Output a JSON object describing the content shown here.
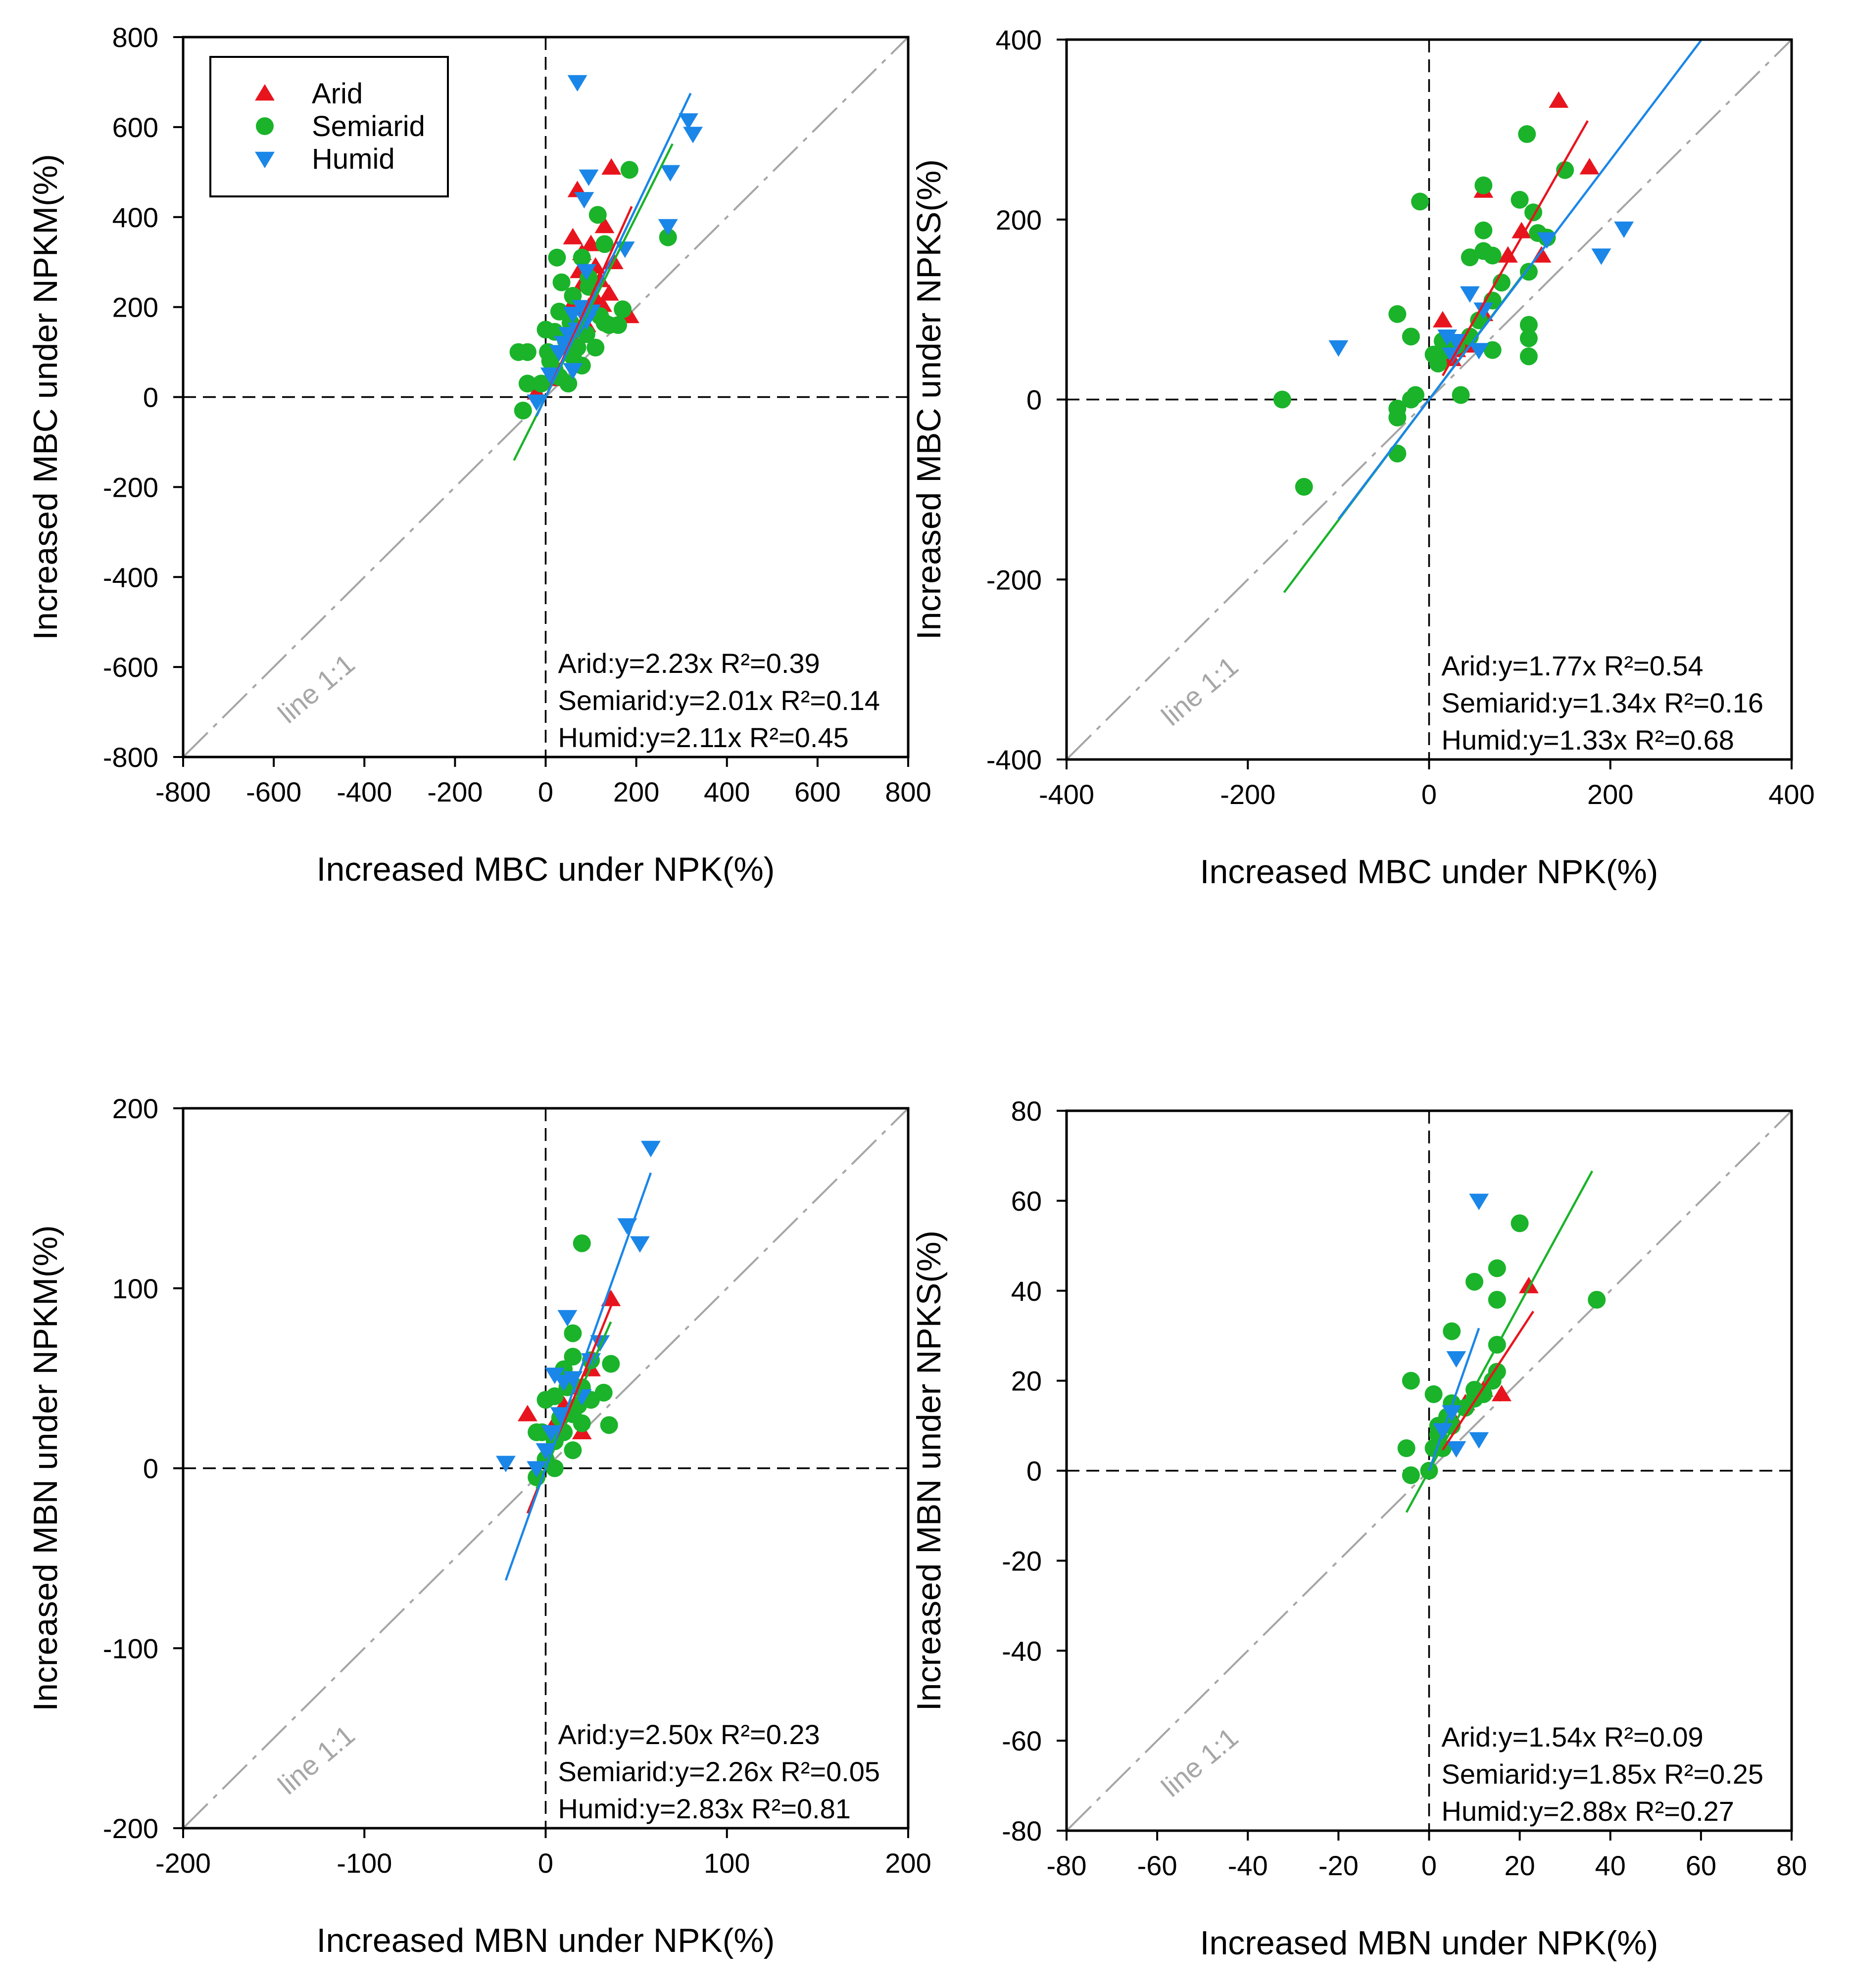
{
  "colors": {
    "arid": "#e8141d",
    "semiarid": "#1ab32a",
    "humid": "#1a86e8",
    "identity": "#a6a6a6",
    "axis": "#000000"
  },
  "legend": [
    "Arid",
    "Semiarid",
    "Humid"
  ],
  "chart_data": [
    {
      "type": "scatter",
      "xlabel": "Increased MBC under NPK(%)",
      "ylabel": "Increased MBC under NPKM(%)",
      "xlim": [
        -800,
        800
      ],
      "ylim": [
        -800,
        800
      ],
      "xticks": [
        "-800",
        "-600",
        "-400",
        "-200",
        "0",
        "200",
        "400",
        "600",
        "800"
      ],
      "yticks": [
        "-800",
        "-600",
        "-400",
        "-200",
        "0",
        "200",
        "400",
        "600",
        "800"
      ],
      "identity_label": "line 1:1",
      "show_legend": true,
      "equations": [
        "Arid:y=2.23x R²=0.39",
        "Semiarid:y=2.01x R²=0.14",
        "Humid:y=2.11x R²=0.45"
      ],
      "series": [
        {
          "name": "Arid",
          "slope": 2.23,
          "fit_x": [
            0,
            190
          ],
          "points": [
            [
              145,
              510
            ],
            [
              70,
              460
            ],
            [
              100,
              340
            ],
            [
              60,
              355
            ],
            [
              80,
              320
            ],
            [
              130,
              380
            ],
            [
              150,
              300
            ],
            [
              110,
              290
            ],
            [
              75,
              280
            ],
            [
              120,
              260
            ],
            [
              185,
              180
            ],
            [
              95,
              200
            ],
            [
              140,
              230
            ],
            [
              110,
              220
            ],
            [
              90,
              160
            ],
            [
              60,
              130
            ],
            [
              40,
              110
            ],
            [
              20,
              70
            ],
            [
              10,
              40
            ],
            [
              -20,
              10
            ],
            [
              80,
              250
            ],
            [
              55,
              200
            ],
            [
              125,
              205
            ]
          ]
        },
        {
          "name": "Semiarid",
          "slope": 2.01,
          "fit_x": [
            -70,
            280
          ],
          "points": [
            [
              185,
              505
            ],
            [
              115,
              405
            ],
            [
              25,
              310
            ],
            [
              80,
              310
            ],
            [
              130,
              340
            ],
            [
              270,
              355
            ],
            [
              95,
              265
            ],
            [
              35,
              255
            ],
            [
              60,
              225
            ],
            [
              95,
              245
            ],
            [
              170,
              195
            ],
            [
              120,
              180
            ],
            [
              30,
              190
            ],
            [
              55,
              165
            ],
            [
              90,
              140
            ],
            [
              130,
              165
            ],
            [
              45,
              125
            ],
            [
              20,
              145
            ],
            [
              70,
              110
            ],
            [
              110,
              110
            ],
            [
              -60,
              100
            ],
            [
              -40,
              100
            ],
            [
              0,
              150
            ],
            [
              -40,
              30
            ],
            [
              -10,
              30
            ],
            [
              30,
              45
            ],
            [
              50,
              30
            ],
            [
              -50,
              -30
            ],
            [
              10,
              80
            ],
            [
              20,
              60
            ],
            [
              60,
              90
            ],
            [
              80,
              70
            ],
            [
              140,
              160
            ],
            [
              160,
              160
            ],
            [
              5,
              100
            ]
          ]
        },
        {
          "name": "Humid",
          "slope": 2.11,
          "fit_x": [
            -20,
            320
          ],
          "points": [
            [
              70,
              700
            ],
            [
              95,
              490
            ],
            [
              315,
              615
            ],
            [
              325,
              585
            ],
            [
              85,
              440
            ],
            [
              275,
              500
            ],
            [
              270,
              380
            ],
            [
              175,
              330
            ],
            [
              90,
              280
            ],
            [
              80,
              200
            ],
            [
              60,
              185
            ],
            [
              100,
              190
            ],
            [
              70,
              150
            ],
            [
              40,
              120
            ],
            [
              30,
              100
            ],
            [
              60,
              60
            ],
            [
              10,
              50
            ],
            [
              -20,
              -10
            ],
            [
              50,
              140
            ],
            [
              90,
              170
            ]
          ]
        }
      ]
    },
    {
      "type": "scatter",
      "xlabel": "Increased MBC under NPK(%)",
      "ylabel": "Increased MBC under NPKS(%)",
      "xlim": [
        -400,
        400
      ],
      "ylim": [
        -400,
        400
      ],
      "xticks": [
        "-400",
        "-200",
        "0",
        "200",
        "400"
      ],
      "yticks": [
        "-400",
        "-200",
        "0",
        "200",
        "400"
      ],
      "identity_label": "line 1:1",
      "show_legend": false,
      "equations": [
        "Arid:y=1.77x R²=0.54",
        "Semiarid:y=1.34x R²=0.16",
        "Humid:y=1.33x R²=0.68"
      ],
      "series": [
        {
          "name": "Arid",
          "slope": 1.77,
          "fit_x": [
            15,
            175
          ],
          "points": [
            [
              143,
              332
            ],
            [
              177,
              258
            ],
            [
              60,
              232
            ],
            [
              102,
              187
            ],
            [
              87,
              160
            ],
            [
              124,
              160
            ],
            [
              15,
              88
            ],
            [
              60,
              95
            ],
            [
              40,
              60
            ],
            [
              25,
              45
            ],
            [
              30,
              55
            ]
          ]
        },
        {
          "name": "Semiarid",
          "slope": 1.34,
          "fit_x": [
            -160,
            110
          ],
          "points": [
            [
              -162,
              0
            ],
            [
              -138,
              -97
            ],
            [
              -10,
              220
            ],
            [
              108,
              295
            ],
            [
              150,
              255
            ],
            [
              60,
              238
            ],
            [
              100,
              222
            ],
            [
              45,
              158
            ],
            [
              115,
              208
            ],
            [
              60,
              188
            ],
            [
              120,
              185
            ],
            [
              60,
              165
            ],
            [
              70,
              160
            ],
            [
              110,
              142
            ],
            [
              80,
              130
            ],
            [
              70,
              110
            ],
            [
              -35,
              95
            ],
            [
              110,
              83
            ],
            [
              -20,
              70
            ],
            [
              110,
              68
            ],
            [
              110,
              48
            ],
            [
              70,
              55
            ],
            [
              15,
              65
            ],
            [
              20,
              55
            ],
            [
              30,
              60
            ],
            [
              10,
              40
            ],
            [
              5,
              50
            ],
            [
              45,
              70
            ],
            [
              35,
              5
            ],
            [
              -15,
              5
            ],
            [
              -35,
              -10
            ],
            [
              -35,
              -20
            ],
            [
              -35,
              -60
            ],
            [
              -20,
              0
            ],
            [
              55,
              88
            ],
            [
              130,
              180
            ]
          ]
        },
        {
          "name": "Humid",
          "slope": 1.33,
          "fit_x": [
            -100,
            300
          ],
          "points": [
            [
              -100,
              58
            ],
            [
              215,
              190
            ],
            [
              190,
              160
            ],
            [
              130,
              178
            ],
            [
              45,
              118
            ],
            [
              60,
              100
            ],
            [
              20,
              70
            ],
            [
              30,
              65
            ],
            [
              55,
              55
            ],
            [
              25,
              50
            ]
          ]
        }
      ]
    },
    {
      "type": "scatter",
      "xlabel": "Increased MBN under NPK(%)",
      "ylabel": "Increased MBN under NPKM(%)",
      "xlim": [
        -200,
        200
      ],
      "ylim": [
        -200,
        200
      ],
      "xticks": [
        "-200",
        "-100",
        "0",
        "100",
        "200"
      ],
      "yticks": [
        "-200",
        "-100",
        "0",
        "100",
        "200"
      ],
      "identity_label": "line 1:1",
      "show_legend": false,
      "equations": [
        "Arid:y=2.50x R²=0.23",
        "Semiarid:y=2.26x R²=0.05",
        "Humid:y=2.83x R²=0.81"
      ],
      "series": [
        {
          "name": "Arid",
          "slope": 2.5,
          "fit_x": [
            -10,
            38
          ],
          "points": [
            [
              36,
              94
            ],
            [
              -10,
              30
            ],
            [
              20,
              20
            ],
            [
              25,
              55
            ],
            [
              15,
              45
            ],
            [
              10,
              35
            ],
            [
              5,
              25
            ]
          ]
        },
        {
          "name": "Semiarid",
          "slope": 2.26,
          "fit_x": [
            -5,
            36
          ],
          "points": [
            [
              20,
              125
            ],
            [
              15,
              75
            ],
            [
              36,
              58
            ],
            [
              32,
              42
            ],
            [
              35,
              24
            ],
            [
              25,
              38
            ],
            [
              15,
              62
            ],
            [
              10,
              55
            ],
            [
              12,
              45
            ],
            [
              5,
              40
            ],
            [
              0,
              38
            ],
            [
              15,
              30
            ],
            [
              20,
              25
            ],
            [
              15,
              10
            ],
            [
              -5,
              20
            ],
            [
              5,
              15
            ],
            [
              10,
              20
            ],
            [
              0,
              5
            ],
            [
              -5,
              -5
            ],
            [
              5,
              0
            ],
            [
              20,
              45
            ],
            [
              25,
              60
            ],
            [
              -2,
              20
            ],
            [
              8,
              28
            ],
            [
              18,
              35
            ]
          ]
        },
        {
          "name": "Humid",
          "slope": 2.83,
          "fit_x": [
            -22,
            58
          ],
          "points": [
            [
              58,
              178
            ],
            [
              45,
              135
            ],
            [
              52,
              125
            ],
            [
              12,
              84
            ],
            [
              5,
              52
            ],
            [
              10,
              48
            ],
            [
              8,
              30
            ],
            [
              -22,
              3
            ],
            [
              3,
              20
            ],
            [
              15,
              50
            ],
            [
              20,
              40
            ],
            [
              -5,
              0
            ],
            [
              0,
              10
            ],
            [
              25,
              60
            ],
            [
              30,
              70
            ]
          ]
        }
      ]
    },
    {
      "type": "scatter",
      "xlabel": "Increased MBN under NPK(%)",
      "ylabel": "Increased MBN under NPKS(%)",
      "xlim": [
        -80,
        80
      ],
      "ylim": [
        -80,
        80
      ],
      "xticks": [
        "-80",
        "-60",
        "-40",
        "-20",
        "0",
        "20",
        "40",
        "60",
        "80"
      ],
      "yticks": [
        "-80",
        "-60",
        "-40",
        "-20",
        "0",
        "20",
        "40",
        "60",
        "80"
      ],
      "identity_label": "line 1:1",
      "show_legend": false,
      "equations": [
        "Arid:y=1.54x R²=0.09",
        "Semiarid:y=1.85x R²=0.25",
        "Humid:y=2.88x R²=0.27"
      ],
      "series": [
        {
          "name": "Arid",
          "slope": 1.54,
          "fit_x": [
            3,
            23
          ],
          "points": [
            [
              22,
              41
            ],
            [
              16,
              17
            ],
            [
              12,
              18
            ],
            [
              8,
              15
            ],
            [
              5,
              12
            ]
          ]
        },
        {
          "name": "Semiarid",
          "slope": 1.85,
          "fit_x": [
            -5,
            36
          ],
          "points": [
            [
              20,
              55
            ],
            [
              15,
              45
            ],
            [
              10,
              42
            ],
            [
              15,
              38
            ],
            [
              37,
              38
            ],
            [
              5,
              31
            ],
            [
              -4,
              20
            ],
            [
              1,
              17
            ],
            [
              15,
              28
            ],
            [
              15,
              22
            ],
            [
              10,
              18
            ],
            [
              5,
              15
            ],
            [
              2,
              10
            ],
            [
              -5,
              5
            ],
            [
              2,
              8
            ],
            [
              -4,
              -1
            ],
            [
              0,
              0
            ],
            [
              5,
              10
            ],
            [
              12,
              17
            ],
            [
              8,
              14
            ],
            [
              3,
              5
            ],
            [
              14,
              20
            ],
            [
              4,
              12
            ],
            [
              10,
              16
            ],
            [
              1,
              5
            ]
          ]
        },
        {
          "name": "Humid",
          "slope": 2.88,
          "fit_x": [
            0,
            11
          ],
          "points": [
            [
              11,
              60
            ],
            [
              11,
              7
            ],
            [
              6,
              5
            ],
            [
              6,
              25
            ],
            [
              3,
              9
            ],
            [
              5,
              13
            ]
          ]
        }
      ]
    }
  ]
}
